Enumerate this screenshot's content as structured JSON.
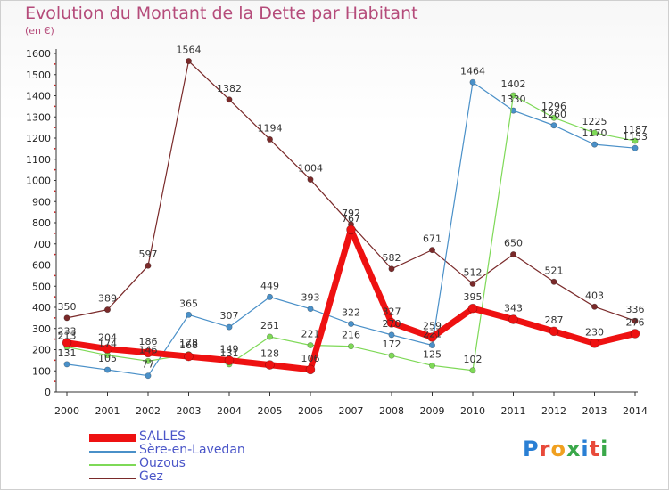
{
  "header": {
    "title": "Evolution du Montant de la Dette par Habitant",
    "subtitle": "(en €)"
  },
  "logo": {
    "text": "Proxiti"
  },
  "chart_data": {
    "type": "line",
    "title": "Evolution du Montant de la Dette par Habitant",
    "subtitle": "(en €)",
    "x": [
      "2000",
      "2001",
      "2002",
      "2003",
      "2004",
      "2005",
      "2006",
      "2007",
      "2008",
      "2009",
      "2010",
      "2011",
      "2012",
      "2013",
      "2014"
    ],
    "yticks": [
      0,
      100,
      200,
      300,
      400,
      500,
      600,
      700,
      800,
      900,
      1000,
      1100,
      1200,
      1300,
      1400,
      1500,
      1600
    ],
    "ylim": [
      0,
      1600
    ],
    "grid": false,
    "legend": "bottom-left",
    "series": [
      {
        "name": "Gez",
        "color": "#7a2a2a",
        "values": [
          350,
          389,
          597,
          1564,
          1382,
          1194,
          1004,
          792,
          582,
          671,
          512,
          650,
          521,
          403,
          336
        ]
      },
      {
        "name": "Sère-en-Lavedan",
        "color": "#4a90c8",
        "values": [
          131,
          105,
          77,
          365,
          307,
          449,
          393,
          322,
          270,
          221,
          1464,
          1330,
          1260,
          1170,
          1153
        ]
      },
      {
        "name": "Ouzous",
        "color": "#7ed957",
        "values": [
          213,
          174,
          146,
          178,
          131,
          261,
          221,
          216,
          172,
          125,
          102,
          1402,
          1296,
          1225,
          1187
        ]
      },
      {
        "name": "SALLES",
        "color": "#ee1111",
        "values": [
          233,
          204,
          186,
          168,
          149,
          128,
          106,
          767,
          327,
          259,
          395,
          343,
          287,
          230,
          276
        ]
      }
    ],
    "data_labels": {
      "Gez": [
        "350",
        "389",
        "597",
        "1564",
        "1382",
        "1194",
        "1004",
        "792",
        "582",
        "671",
        "512",
        "650",
        "521",
        "403",
        "336"
      ],
      "Sère-en-Lavedan": [
        "131",
        "105",
        "77",
        "365",
        "307",
        "449",
        "393",
        "322",
        "270",
        "221",
        "1464",
        "1330",
        "1260",
        "1170",
        "1153"
      ],
      "Ouzous": [
        "213",
        "174",
        "146",
        "178",
        "131",
        "261",
        "221",
        "216",
        "172",
        "125",
        "102",
        "1402",
        "1296",
        "1225",
        "1187"
      ],
      "SALLES": [
        "233",
        "204",
        "186",
        "168",
        "149",
        "128",
        "106",
        "767",
        "327",
        "259",
        "395",
        "343",
        "287",
        "230",
        "276"
      ]
    }
  },
  "legend": {
    "items": [
      {
        "label": "SALLES",
        "color": "#ee1111"
      },
      {
        "label": "Sère-en-Lavedan",
        "color": "#4a90c8"
      },
      {
        "label": "Ouzous",
        "color": "#7ed957"
      },
      {
        "label": "Gez",
        "color": "#7a2a2a"
      }
    ]
  }
}
